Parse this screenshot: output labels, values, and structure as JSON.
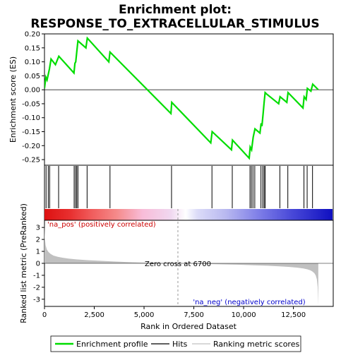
{
  "title_line1": "Enrichment plot:",
  "title_line2": "RESPONSE_TO_EXTRACELLULAR_STIMULUS",
  "colors": {
    "es_line": "#00dd00",
    "hits": "#000000",
    "metric_fill": "#c0c0c0",
    "pos_label": "#cc0000",
    "neg_label": "#0000cc",
    "zero_dash": "#999999"
  },
  "chart_data": [
    {
      "type": "line",
      "name": "enrichment-profile",
      "ylabel": "Enrichment score (ES)",
      "xlim": [
        0,
        14500
      ],
      "ylim": [
        -0.27,
        0.2
      ],
      "yticks": [
        -0.25,
        -0.2,
        -0.15,
        -0.1,
        -0.05,
        0.0,
        0.05,
        0.1,
        0.15,
        0.2
      ],
      "ytick_labels": [
        "-0.25",
        "-0.20",
        "-0.15",
        "-0.10",
        "-0.05",
        "0.00",
        "0.05",
        "0.10",
        "0.15",
        "0.20"
      ],
      "x": [
        0,
        70,
        130,
        250,
        330,
        550,
        720,
        1480,
        1530,
        1570,
        1620,
        1680,
        2080,
        2150,
        3230,
        3290,
        6350,
        6390,
        8350,
        8420,
        9390,
        9440,
        10280,
        10330,
        10400,
        10480,
        10570,
        10820,
        10880,
        10920,
        10980,
        11030,
        11080,
        11150,
        11760,
        11830,
        12170,
        12230,
        12980,
        13040,
        13140,
        13200,
        13380,
        13470,
        13750
      ],
      "y": [
        0.005,
        0.045,
        0.035,
        0.075,
        0.11,
        0.09,
        0.12,
        0.06,
        0.095,
        0.1,
        0.135,
        0.175,
        0.15,
        0.185,
        0.1,
        0.135,
        -0.085,
        -0.045,
        -0.19,
        -0.15,
        -0.215,
        -0.18,
        -0.245,
        -0.205,
        -0.215,
        -0.17,
        -0.14,
        -0.155,
        -0.12,
        -0.13,
        -0.085,
        -0.045,
        -0.01,
        -0.015,
        -0.05,
        -0.025,
        -0.045,
        -0.01,
        -0.065,
        -0.025,
        -0.035,
        0.005,
        -0.005,
        0.02,
        0.0
      ]
    },
    {
      "type": "hits",
      "name": "hits",
      "x": [
        80,
        190,
        260,
        710,
        1490,
        1560,
        1620,
        1680,
        2140,
        3290,
        6380,
        8410,
        9430,
        10320,
        10390,
        10470,
        10560,
        10870,
        10960,
        11030,
        11080,
        11820,
        12220,
        13030,
        13190,
        13460
      ]
    },
    {
      "type": "area",
      "name": "ranked-list-metric",
      "xlabel": "Rank in Ordered Dataset",
      "ylabel": "Ranked list metric (PreRanked)",
      "xlim": [
        0,
        14500
      ],
      "ylim": [
        -3.6,
        3.6
      ],
      "xticks": [
        0,
        2500,
        5000,
        7500,
        10000,
        12500
      ],
      "xtick_labels": [
        "0",
        "2,500",
        "5,000",
        "7,500",
        "10,000",
        "12,500"
      ],
      "yticks": [
        -3,
        -2,
        -1,
        0,
        1,
        2,
        3
      ],
      "ytick_labels": [
        "-3",
        "-2",
        "-1",
        "0",
        "1",
        "2",
        "3"
      ],
      "x": [
        0,
        20,
        60,
        120,
        200,
        300,
        450,
        650,
        900,
        1200,
        1600,
        2100,
        2700,
        3400,
        4200,
        5000,
        5800,
        6700,
        7500,
        8300,
        9000,
        9800,
        10500,
        11200,
        11800,
        12300,
        12700,
        13000,
        13200,
        13350,
        13450,
        13550,
        13620,
        13680,
        13720,
        13750
      ],
      "y": [
        3.3,
        2.1,
        1.5,
        1.15,
        0.95,
        0.8,
        0.65,
        0.55,
        0.47,
        0.4,
        0.33,
        0.27,
        0.22,
        0.16,
        0.1,
        0.06,
        0.03,
        0.0,
        -0.03,
        -0.06,
        -0.09,
        -0.12,
        -0.16,
        -0.2,
        -0.25,
        -0.3,
        -0.36,
        -0.43,
        -0.5,
        -0.58,
        -0.68,
        -0.82,
        -1.0,
        -1.35,
        -2.0,
        -3.5
      ]
    }
  ],
  "zero_cross": {
    "rank": 6700,
    "label": "Zero cross at 6700"
  },
  "pos_label": "'na_pos' (positively correlated)",
  "neg_label": "'na_neg' (negatively correlated)",
  "legend": {
    "items": [
      {
        "label": "Enrichment profile",
        "color": "#00dd00",
        "kind": "line"
      },
      {
        "label": "Hits",
        "color": "#000000",
        "kind": "line"
      },
      {
        "label": "Ranking metric scores",
        "color": "#c0c0c0",
        "kind": "line"
      }
    ]
  },
  "heat_bar": {
    "stops": [
      {
        "pos": 0.0,
        "color": "#dd1111"
      },
      {
        "pos": 0.09,
        "color": "#e83030"
      },
      {
        "pos": 0.16,
        "color": "#f05a5a"
      },
      {
        "pos": 0.25,
        "color": "#f58a8a"
      },
      {
        "pos": 0.34,
        "color": "#f8bcd8"
      },
      {
        "pos": 0.44,
        "color": "#f0d8f0"
      },
      {
        "pos": 0.49,
        "color": "#ffffff"
      },
      {
        "pos": 0.53,
        "color": "#dcdcf8"
      },
      {
        "pos": 0.63,
        "color": "#b8b8f0"
      },
      {
        "pos": 0.74,
        "color": "#8080e8"
      },
      {
        "pos": 0.86,
        "color": "#4848d8"
      },
      {
        "pos": 1.0,
        "color": "#1010c0"
      }
    ]
  }
}
